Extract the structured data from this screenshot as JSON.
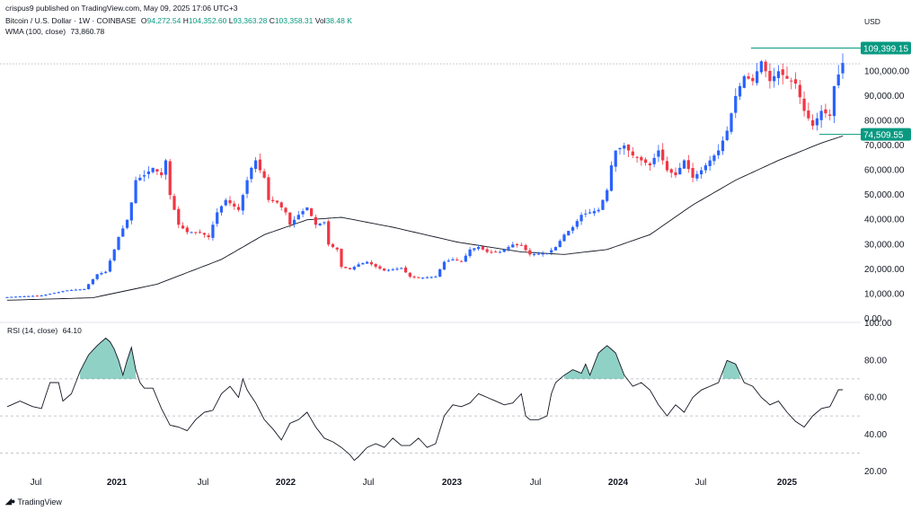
{
  "header": {
    "publisher": "crispus9 published on TradingView.com, May 09, 2025 17:06 UTC+3",
    "symbol": "Bitcoin / U.S. Dollar · 1W · COINBASE",
    "o_label": "O",
    "o": "94,272.54",
    "h_label": "H",
    "h": "104,352.60",
    "l_label": "L",
    "l": "93,363.28",
    "c_label": "C",
    "c": "103,358.31",
    "vol_label": "Vol",
    "vol": "38.48 K",
    "wma_label": "WMA (100, close)",
    "wma": "73,860.78"
  },
  "currency": "USD",
  "footer": {
    "brand": "TradingView"
  },
  "colors": {
    "up": "#2962ff",
    "down": "#f23645",
    "label": "#089981",
    "wma": "#131722",
    "rsi": "#131722",
    "rsi_fill": "#089981"
  },
  "chart_data": [
    {
      "type": "candlestick",
      "ylim": [
        0,
        115000
      ],
      "y_ticks": [
        0,
        10000,
        20000,
        30000,
        40000,
        50000,
        60000,
        70000,
        80000,
        90000,
        100000
      ],
      "y_tick_labels": [
        "0.00",
        "10,000.00",
        "20,000.00",
        "30,000.00",
        "40,000.00",
        "50,000.00",
        "60,000.00",
        "70,000.00",
        "80,000.00",
        "90,000.00",
        "100,000.00"
      ],
      "x_ticks": [
        "Jul",
        "2021",
        "Jul",
        "2022",
        "Jul",
        "2023",
        "Jul",
        "2024",
        "Jul",
        "2025"
      ],
      "price_labels": [
        "109,399.15",
        "74,509.55"
      ],
      "series": [
        {
          "name": "price",
          "key_closes": [
            [
              0,
              8800
            ],
            [
              8,
              9400
            ],
            [
              14,
              11500
            ],
            [
              18,
              12000
            ],
            [
              21,
              18000
            ],
            [
              23,
              19000
            ],
            [
              25,
              28000
            ],
            [
              26,
              33000
            ],
            [
              28,
              40000
            ],
            [
              29,
              47000
            ],
            [
              30,
              56000
            ],
            [
              32,
              58000
            ],
            [
              34,
              61000
            ],
            [
              36,
              58000
            ],
            [
              37,
              64000
            ],
            [
              38,
              50000
            ],
            [
              40,
              38000
            ],
            [
              42,
              35000
            ],
            [
              45,
              35000
            ],
            [
              47,
              33000
            ],
            [
              49,
              43000
            ],
            [
              51,
              48000
            ],
            [
              54,
              44000
            ],
            [
              56,
              56000
            ],
            [
              57,
              61000
            ],
            [
              58,
              64000
            ],
            [
              59,
              60000
            ],
            [
              60,
              57000
            ],
            [
              61,
              48000
            ],
            [
              63,
              47000
            ],
            [
              65,
              43000
            ],
            [
              66,
              38000
            ],
            [
              68,
              42000
            ],
            [
              70,
              45000
            ],
            [
              72,
              38000
            ],
            [
              74,
              39000
            ],
            [
              75,
              30000
            ],
            [
              77,
              28000
            ],
            [
              78,
              21000
            ],
            [
              80,
              20000
            ],
            [
              82,
              22000
            ],
            [
              84,
              23000
            ],
            [
              86,
              21000
            ],
            [
              88,
              19500
            ],
            [
              90,
              20000
            ],
            [
              92,
              20500
            ],
            [
              94,
              17000
            ],
            [
              96,
              16500
            ],
            [
              98,
              16800
            ],
            [
              100,
              17000
            ],
            [
              101,
              20000
            ],
            [
              102,
              23000
            ],
            [
              104,
              24000
            ],
            [
              106,
              23000
            ],
            [
              108,
              28000
            ],
            [
              110,
              29000
            ],
            [
              112,
              27000
            ],
            [
              115,
              27000
            ],
            [
              118,
              30000
            ],
            [
              120,
              29500
            ],
            [
              122,
              26000
            ],
            [
              126,
              26500
            ],
            [
              128,
              29000
            ],
            [
              130,
              34000
            ],
            [
              132,
              37000
            ],
            [
              134,
              42000
            ],
            [
              136,
              43000
            ],
            [
              138,
              44000
            ],
            [
              140,
              52000
            ],
            [
              141,
              62000
            ],
            [
              142,
              68000
            ],
            [
              144,
              70000
            ],
            [
              146,
              66000
            ],
            [
              148,
              64000
            ],
            [
              150,
              62000
            ],
            [
              152,
              68000
            ],
            [
              154,
              60000
            ],
            [
              156,
              58000
            ],
            [
              158,
              64000
            ],
            [
              160,
              57000
            ],
            [
              162,
              60000
            ],
            [
              164,
              64000
            ],
            [
              166,
              68000
            ],
            [
              168,
              76000
            ],
            [
              170,
              90000
            ],
            [
              172,
              98000
            ],
            [
              174,
              96000
            ],
            [
              176,
              104000
            ],
            [
              178,
              96000
            ],
            [
              180,
              100000
            ],
            [
              182,
              97000
            ],
            [
              184,
              95000
            ],
            [
              186,
              84000
            ],
            [
              188,
              78000
            ],
            [
              190,
              84000
            ],
            [
              192,
              82000
            ],
            [
              193,
              94000
            ],
            [
              195,
              103358
            ]
          ]
        },
        {
          "name": "WMA (100, close)",
          "key_points": [
            [
              0,
              7500
            ],
            [
              20,
              8500
            ],
            [
              35,
              14000
            ],
            [
              50,
              24000
            ],
            [
              60,
              34000
            ],
            [
              70,
              40000
            ],
            [
              78,
              41000
            ],
            [
              90,
              37000
            ],
            [
              105,
              31000
            ],
            [
              120,
              27000
            ],
            [
              130,
              26000
            ],
            [
              140,
              28000
            ],
            [
              150,
              34000
            ],
            [
              160,
              46000
            ],
            [
              170,
              56000
            ],
            [
              180,
              64000
            ],
            [
              190,
              71000
            ],
            [
              195,
              73860
            ]
          ]
        }
      ]
    },
    {
      "type": "line",
      "title": "RSI (14, close)",
      "value": "64.10",
      "ylim": [
        20,
        100
      ],
      "y_tick_labels": [
        "20.00",
        "40.00",
        "60.00",
        "80.00",
        "100.00"
      ],
      "levels": [
        30,
        50,
        70
      ],
      "key_points": [
        [
          0,
          55
        ],
        [
          3,
          58
        ],
        [
          6,
          55
        ],
        [
          8,
          54
        ],
        [
          10,
          68
        ],
        [
          12,
          68
        ],
        [
          13,
          58
        ],
        [
          15,
          62
        ],
        [
          17,
          74
        ],
        [
          19,
          83
        ],
        [
          21,
          88
        ],
        [
          23,
          92
        ],
        [
          24,
          90
        ],
        [
          25,
          86
        ],
        [
          26,
          80
        ],
        [
          27,
          72
        ],
        [
          28,
          80
        ],
        [
          29,
          87
        ],
        [
          30,
          75
        ],
        [
          31,
          68
        ],
        [
          32,
          65
        ],
        [
          34,
          65
        ],
        [
          36,
          54
        ],
        [
          38,
          45
        ],
        [
          40,
          44
        ],
        [
          42,
          42
        ],
        [
          44,
          48
        ],
        [
          46,
          52
        ],
        [
          48,
          53
        ],
        [
          50,
          62
        ],
        [
          52,
          66
        ],
        [
          54,
          60
        ],
        [
          55,
          70
        ],
        [
          56,
          64
        ],
        [
          58,
          57
        ],
        [
          60,
          48
        ],
        [
          62,
          43
        ],
        [
          63,
          40
        ],
        [
          64,
          37
        ],
        [
          66,
          46
        ],
        [
          68,
          48
        ],
        [
          70,
          52
        ],
        [
          72,
          44
        ],
        [
          74,
          38
        ],
        [
          76,
          36
        ],
        [
          78,
          33
        ],
        [
          80,
          29
        ],
        [
          81,
          26
        ],
        [
          82,
          28
        ],
        [
          84,
          33
        ],
        [
          86,
          35
        ],
        [
          88,
          33
        ],
        [
          90,
          38
        ],
        [
          92,
          34
        ],
        [
          94,
          34
        ],
        [
          96,
          38
        ],
        [
          98,
          33
        ],
        [
          99,
          34
        ],
        [
          100,
          35
        ],
        [
          102,
          50
        ],
        [
          104,
          56
        ],
        [
          106,
          55
        ],
        [
          108,
          57
        ],
        [
          110,
          62
        ],
        [
          112,
          60
        ],
        [
          114,
          58
        ],
        [
          116,
          56
        ],
        [
          118,
          57
        ],
        [
          120,
          62
        ],
        [
          121,
          50
        ],
        [
          122,
          48
        ],
        [
          124,
          48
        ],
        [
          126,
          50
        ],
        [
          127,
          62
        ],
        [
          128,
          68
        ],
        [
          130,
          72
        ],
        [
          132,
          75
        ],
        [
          134,
          73
        ],
        [
          135,
          78
        ],
        [
          136,
          72
        ],
        [
          138,
          84
        ],
        [
          140,
          88
        ],
        [
          142,
          84
        ],
        [
          144,
          72
        ],
        [
          146,
          66
        ],
        [
          148,
          68
        ],
        [
          150,
          64
        ],
        [
          152,
          56
        ],
        [
          154,
          50
        ],
        [
          156,
          56
        ],
        [
          158,
          52
        ],
        [
          160,
          60
        ],
        [
          162,
          64
        ],
        [
          164,
          66
        ],
        [
          166,
          68
        ],
        [
          168,
          80
        ],
        [
          170,
          78
        ],
        [
          172,
          68
        ],
        [
          174,
          66
        ],
        [
          176,
          60
        ],
        [
          178,
          56
        ],
        [
          180,
          58
        ],
        [
          182,
          52
        ],
        [
          184,
          47
        ],
        [
          186,
          44
        ],
        [
          188,
          50
        ],
        [
          190,
          54
        ],
        [
          192,
          55
        ],
        [
          194,
          64.1
        ]
      ]
    }
  ]
}
